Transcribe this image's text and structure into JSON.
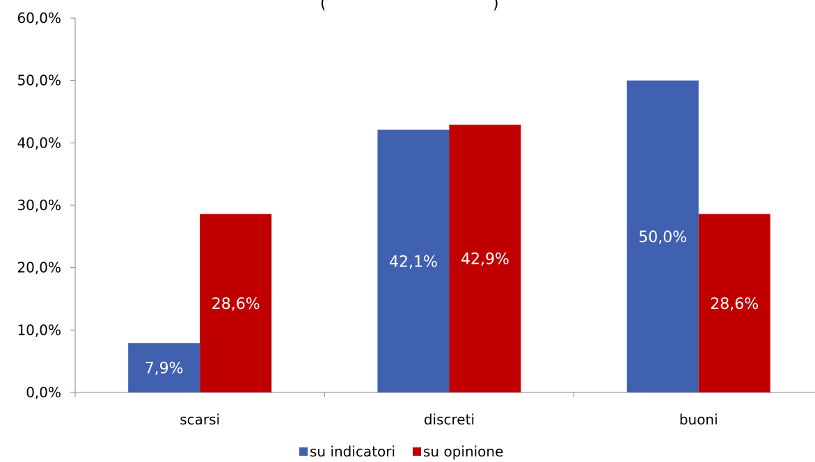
{
  "chart_data": {
    "type": "bar",
    "title": "(",
    "title_right": ")",
    "categories": [
      "scarsi",
      "discreti",
      "buoni"
    ],
    "series": [
      {
        "name": "su indicatori",
        "color": "#4060B0",
        "values": [
          7.9,
          42.1,
          50.0
        ],
        "labels": [
          "7,9%",
          "42,1%",
          "50,0%"
        ]
      },
      {
        "name": "su opinione",
        "color": "#C00000",
        "values": [
          28.6,
          42.9,
          28.6
        ],
        "labels": [
          "28,6%",
          "42,9%",
          "28,6%"
        ]
      }
    ],
    "ylim": [
      0,
      60
    ],
    "yticks": [
      0,
      10,
      20,
      30,
      40,
      50,
      60
    ],
    "ytick_labels": [
      "0,0%",
      "10,0%",
      "20,0%",
      "30,0%",
      "40,0%",
      "50,0%",
      "60,0%"
    ],
    "grid": false,
    "legend_position": "bottom"
  }
}
